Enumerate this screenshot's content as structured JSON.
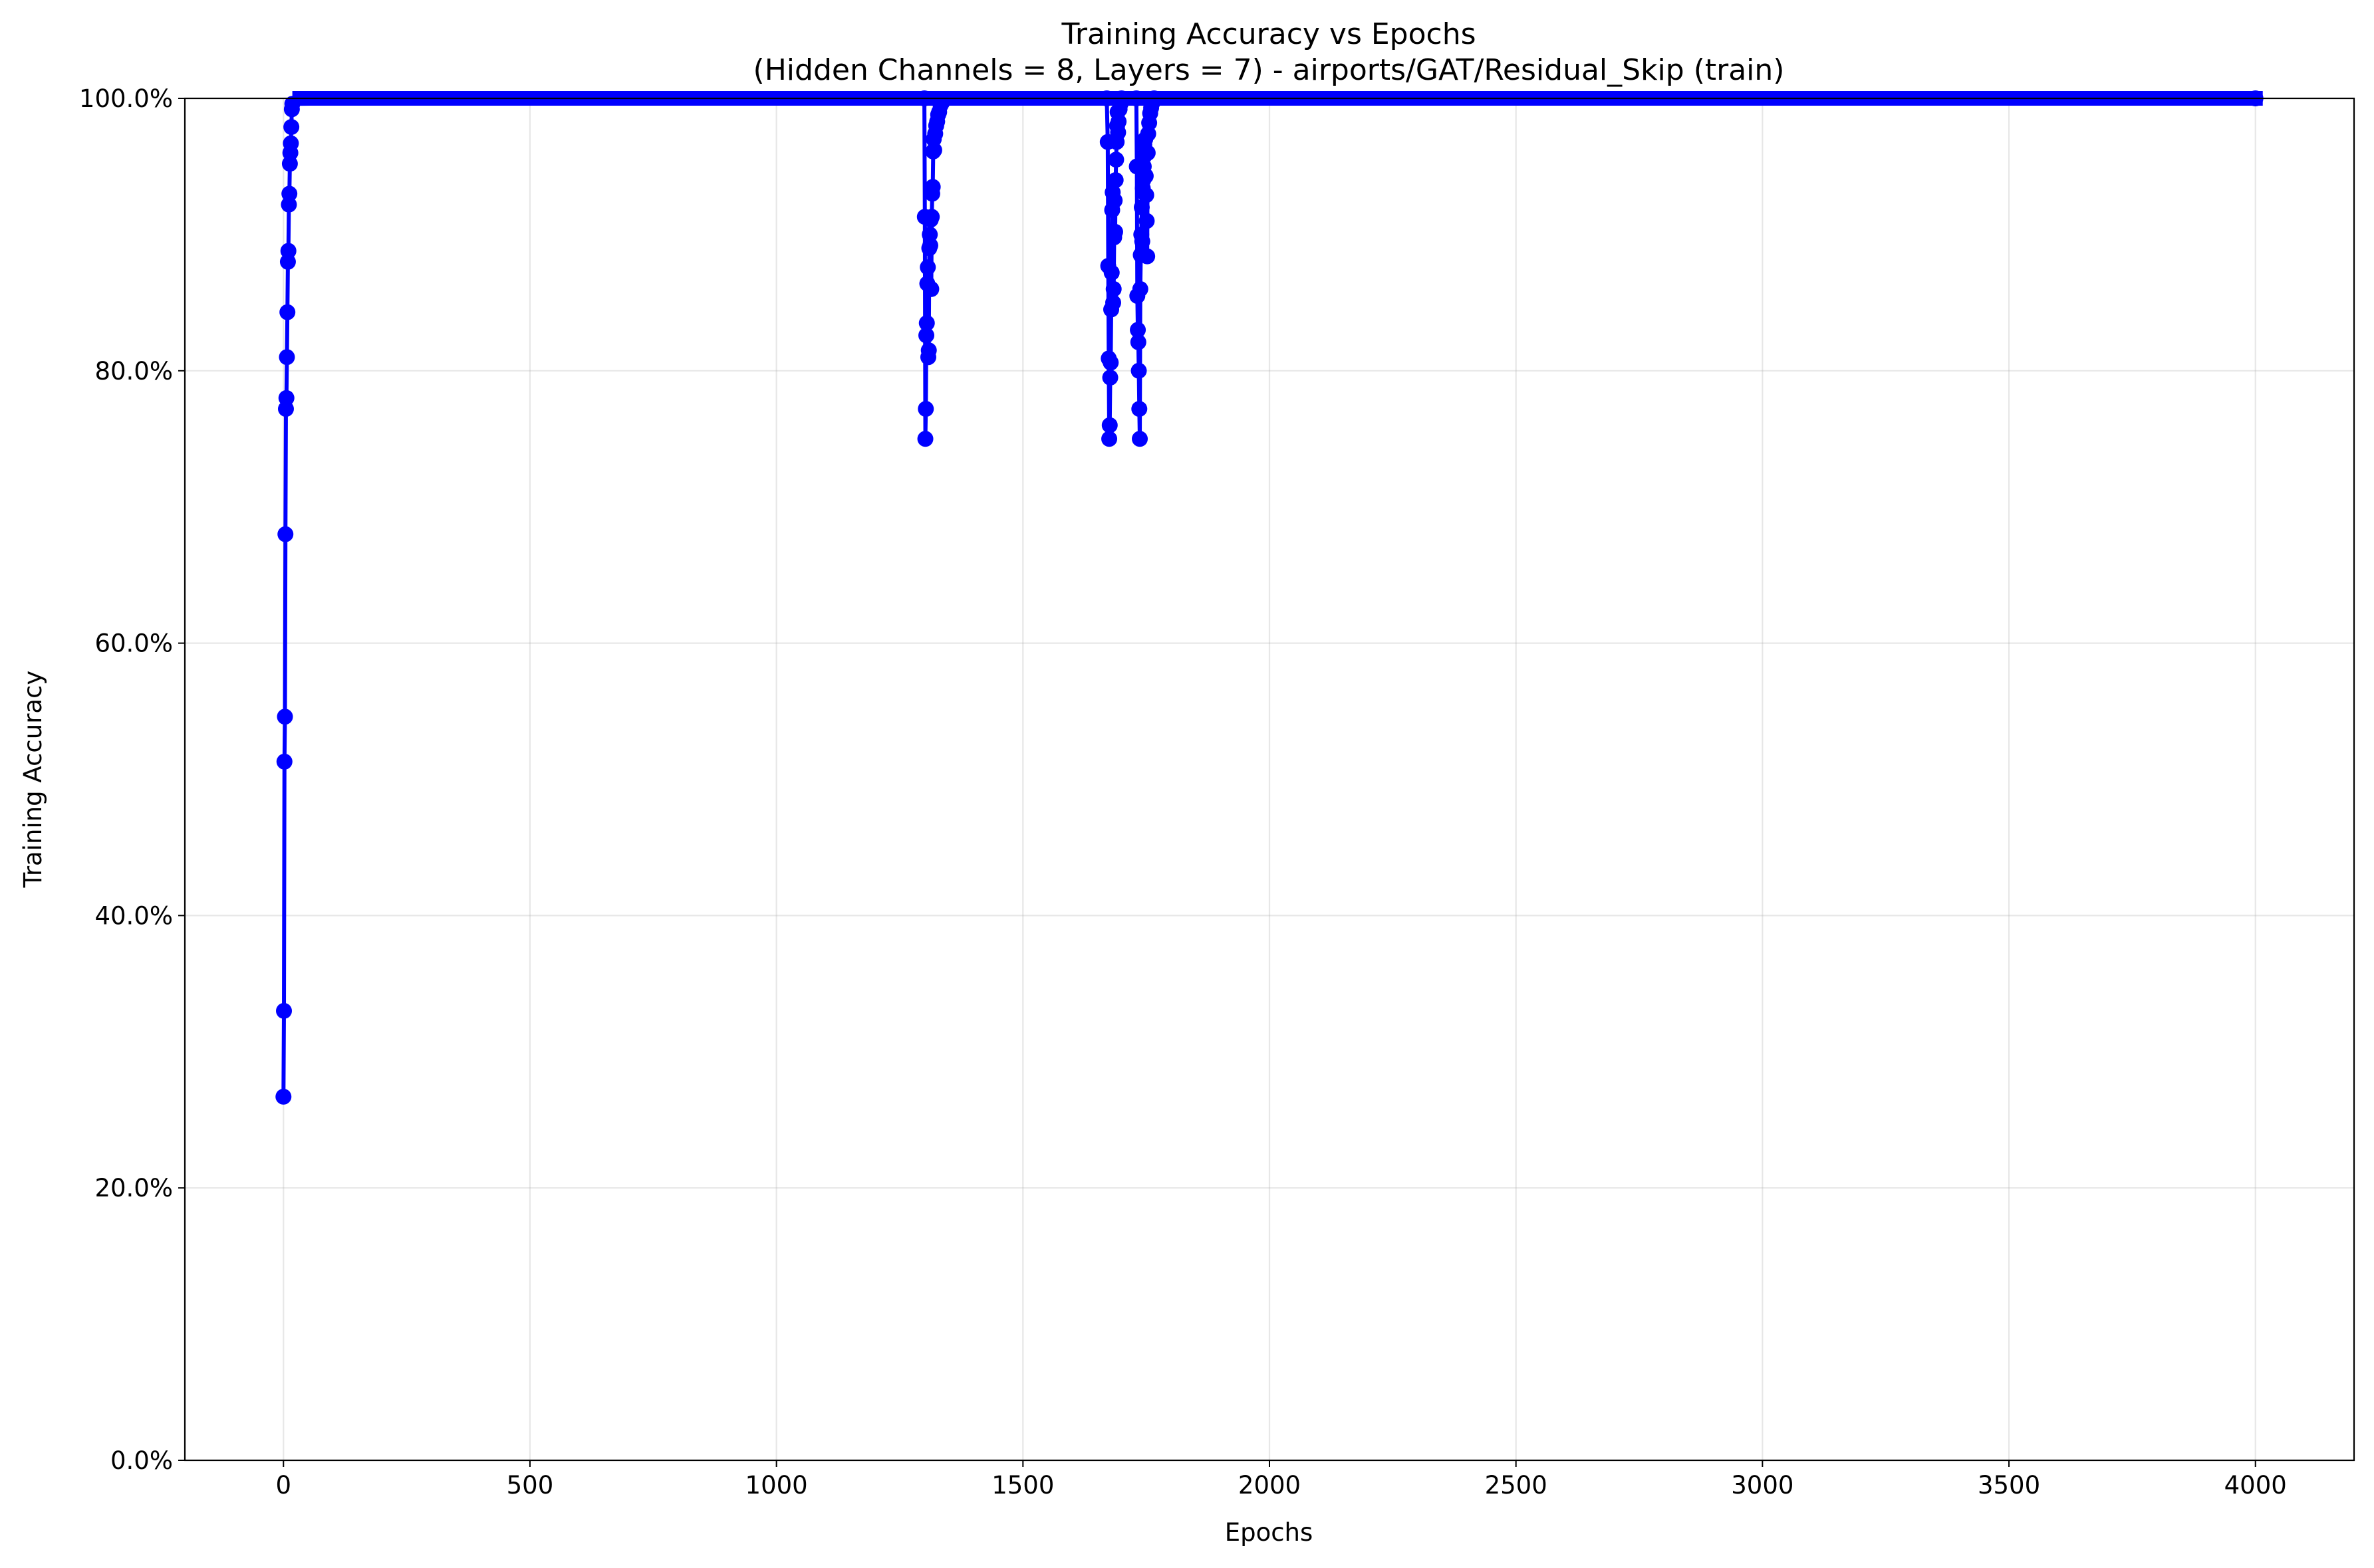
{
  "chart_data": {
    "type": "line",
    "title_line1": "Training Accuracy vs Epochs",
    "title_line2": "(Hidden Channels = 8, Layers = 7) - airports/GAT/Residual_Skip (train)",
    "xlabel": "Epochs",
    "ylabel": "Training Accuracy",
    "xlim": [
      -200,
      4200
    ],
    "ylim": [
      0,
      100
    ],
    "x_ticks": [
      0,
      500,
      1000,
      1500,
      2000,
      2500,
      3000,
      3500,
      4000
    ],
    "x_tick_labels": [
      "0",
      "500",
      "1000",
      "1500",
      "2000",
      "2500",
      "3000",
      "3500",
      "4000"
    ],
    "y_ticks": [
      0,
      20,
      40,
      60,
      80,
      100
    ],
    "y_tick_labels": [
      "0.0%",
      "20.0%",
      "40.0%",
      "60.0%",
      "80.0%",
      "100.0%"
    ],
    "grid": true,
    "series": [
      {
        "color": "#0000ff",
        "marker": "circle",
        "x_range": [
          0,
          4000
        ],
        "baseline_value": 100,
        "points": [
          [
            0,
            26.7
          ],
          [
            1,
            33.0
          ],
          [
            2,
            51.3
          ],
          [
            3,
            54.6
          ],
          [
            4,
            68.0
          ],
          [
            5,
            77.2
          ],
          [
            6,
            78.0
          ],
          [
            7,
            81.0
          ],
          [
            8,
            84.3
          ],
          [
            9,
            88.0
          ],
          [
            10,
            88.8
          ],
          [
            11,
            92.2
          ],
          [
            12,
            93.0
          ],
          [
            13,
            95.2
          ],
          [
            14,
            96.0
          ],
          [
            15,
            96.7
          ],
          [
            16,
            97.9
          ],
          [
            17,
            99.2
          ],
          [
            18,
            99.6
          ],
          [
            1300,
            100
          ],
          [
            1301,
            91.3
          ],
          [
            1302,
            75.0
          ],
          [
            1303,
            77.2
          ],
          [
            1304,
            82.6
          ],
          [
            1305,
            83.5
          ],
          [
            1306,
            86.4
          ],
          [
            1307,
            87.6
          ],
          [
            1308,
            81.0
          ],
          [
            1309,
            81.5
          ],
          [
            1310,
            89.0
          ],
          [
            1311,
            90.0
          ],
          [
            1312,
            89.2
          ],
          [
            1313,
            91.1
          ],
          [
            1314,
            86.0
          ],
          [
            1315,
            91.3
          ],
          [
            1316,
            93.0
          ],
          [
            1317,
            93.5
          ],
          [
            1318,
            96.1
          ],
          [
            1319,
            97.0
          ],
          [
            1320,
            96.2
          ],
          [
            1322,
            97.4
          ],
          [
            1324,
            98.0
          ],
          [
            1326,
            98.3
          ],
          [
            1328,
            98.8
          ],
          [
            1330,
            99.0
          ],
          [
            1333,
            99.5
          ],
          [
            1336,
            99.7
          ],
          [
            1670,
            100
          ],
          [
            1672,
            96.8
          ],
          [
            1673,
            87.7
          ],
          [
            1674,
            80.9
          ],
          [
            1675,
            75.0
          ],
          [
            1676,
            76.0
          ],
          [
            1677,
            79.5
          ],
          [
            1678,
            80.6
          ],
          [
            1679,
            84.5
          ],
          [
            1680,
            87.2
          ],
          [
            1681,
            91.8
          ],
          [
            1682,
            93.1
          ],
          [
            1683,
            85.0
          ],
          [
            1684,
            86.0
          ],
          [
            1685,
            89.8
          ],
          [
            1686,
            92.5
          ],
          [
            1687,
            90.2
          ],
          [
            1688,
            94.0
          ],
          [
            1689,
            95.5
          ],
          [
            1690,
            96.8
          ],
          [
            1691,
            98.0
          ],
          [
            1692,
            99.0
          ],
          [
            1693,
            97.5
          ],
          [
            1694,
            98.3
          ],
          [
            1696,
            99.2
          ],
          [
            1698,
            99.6
          ],
          [
            1700,
            100
          ],
          [
            1730,
            100
          ],
          [
            1731,
            95.0
          ],
          [
            1732,
            85.5
          ],
          [
            1733,
            83.0
          ],
          [
            1734,
            82.1
          ],
          [
            1735,
            80.0
          ],
          [
            1736,
            77.2
          ],
          [
            1737,
            75.0
          ],
          [
            1738,
            86.0
          ],
          [
            1739,
            88.5
          ],
          [
            1740,
            90.0
          ],
          [
            1741,
            92.0
          ],
          [
            1742,
            89.5
          ],
          [
            1743,
            93.4
          ],
          [
            1744,
            94.0
          ],
          [
            1745,
            95.0
          ],
          [
            1746,
            96.6
          ],
          [
            1747,
            95.8
          ],
          [
            1748,
            97.0
          ],
          [
            1749,
            94.3
          ],
          [
            1750,
            92.9
          ],
          [
            1751,
            91.0
          ],
          [
            1752,
            88.4
          ],
          [
            1753,
            96.0
          ],
          [
            1754,
            97.4
          ],
          [
            1756,
            98.2
          ],
          [
            1758,
            98.9
          ],
          [
            1760,
            99.3
          ],
          [
            1763,
            99.7
          ],
          [
            1766,
            100
          ]
        ]
      }
    ]
  }
}
